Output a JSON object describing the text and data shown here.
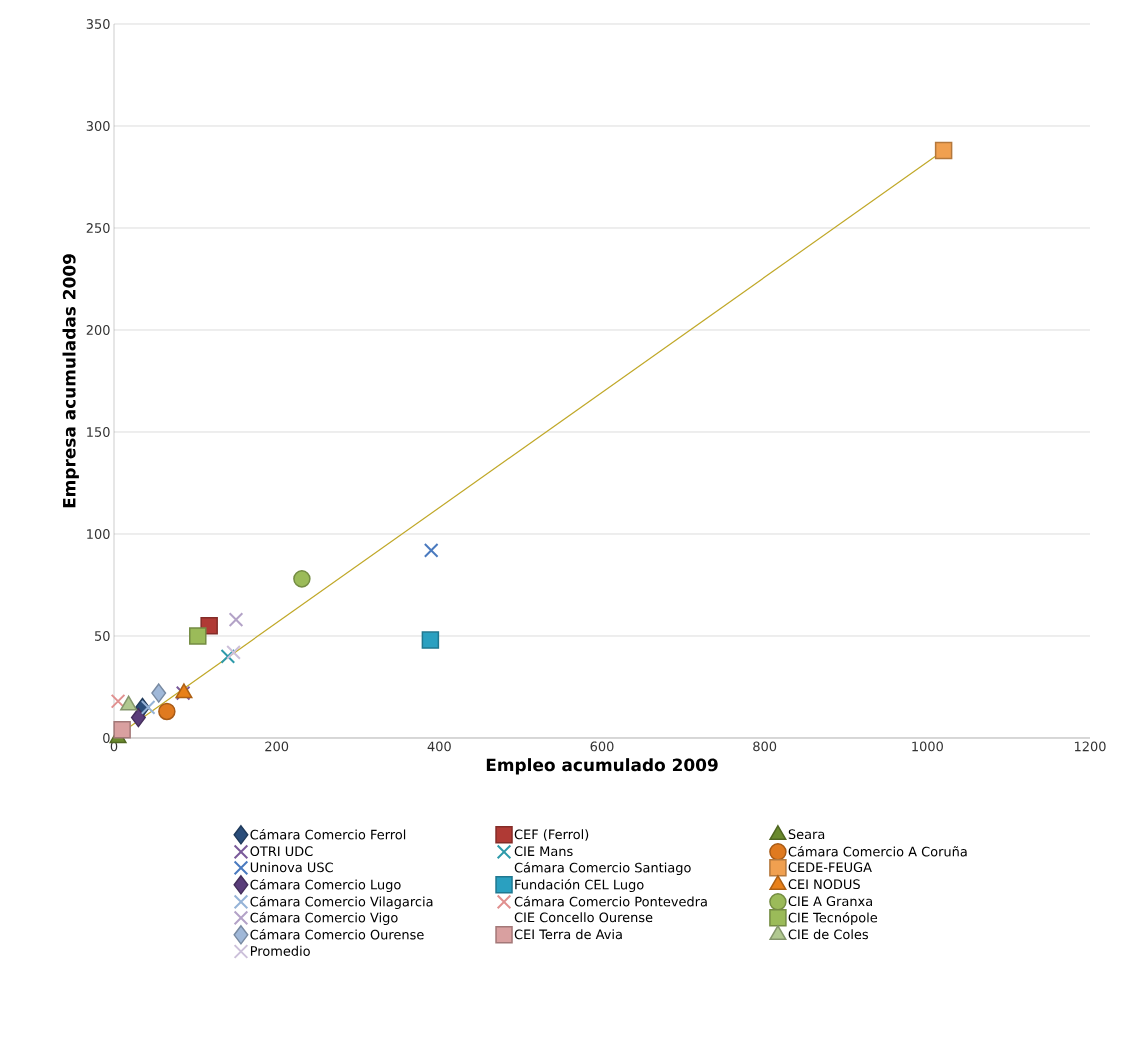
{
  "chart_data": {
    "type": "scatter",
    "xlabel": "Empleo acumulado 2009",
    "ylabel": "Empresa acumuladas 2009",
    "xlim": [
      0,
      1200
    ],
    "xticks": [
      0,
      200,
      400,
      600,
      800,
      1000,
      1200
    ],
    "ylim": [
      0,
      350
    ],
    "yticks": [
      0,
      50,
      100,
      150,
      200,
      250,
      300,
      350
    ],
    "grid": "y",
    "legend": "bottom",
    "series": [
      {
        "name": "Cámara Comercio Ferrol",
        "color": "#2a4d7a",
        "marker": "diamond",
        "x": [
          35
        ],
        "values": [
          15
        ]
      },
      {
        "name": "CEF (Ferrol)",
        "color": "#b03a35",
        "marker": "square",
        "x": [
          117
        ],
        "values": [
          55
        ]
      },
      {
        "name": "Seara",
        "color": "#6a8a2e",
        "marker": "triangle",
        "x": [
          5
        ],
        "values": [
          0
        ]
      },
      {
        "name": "OTRI UDC",
        "color": "#7a5a9a",
        "marker": "cross",
        "x": [
          85
        ],
        "values": [
          22
        ]
      },
      {
        "name": "CIE Mans",
        "color": "#2e9aaa",
        "marker": "cross",
        "x": [
          140
        ],
        "values": [
          40
        ]
      },
      {
        "name": "Cámara Comercio A Coruña",
        "color": "#e07a1f",
        "marker": "circle",
        "x": [
          65
        ],
        "values": [
          13
        ]
      },
      {
        "name": "Uninova USC",
        "color": "#4a7abf",
        "marker": "cross",
        "x": [
          390
        ],
        "values": [
          92
        ]
      },
      {
        "name": "Cámara Comercio Santiago"
      },
      {
        "name": "CEDE-FEUGA",
        "color": "#f0a050",
        "marker": "square",
        "x": [
          1020
        ],
        "values": [
          288
        ]
      },
      {
        "name": "Cámara Comercio Lugo",
        "color": "#5a3d7a",
        "marker": "diamond",
        "x": [
          30
        ],
        "values": [
          10
        ]
      },
      {
        "name": "Fundación CEL Lugo",
        "color": "#2aa0c0",
        "marker": "square",
        "x": [
          389
        ],
        "values": [
          48
        ]
      },
      {
        "name": "CEI NODUS",
        "color": "#e8801a",
        "marker": "triangle",
        "x": [
          86
        ],
        "values": [
          22
        ]
      },
      {
        "name": "Cámara Comercio Vilagarcia",
        "color": "#95b3d7",
        "marker": "cross",
        "x": [
          42
        ],
        "values": [
          15
        ]
      },
      {
        "name": "Cámara Comercio Pontevedra",
        "color": "#e0908f",
        "marker": "cross",
        "x": [
          5
        ],
        "values": [
          18
        ]
      },
      {
        "name": "CIE A Granxa",
        "color": "#9bbb59",
        "marker": "circle",
        "x": [
          231
        ],
        "values": [
          78
        ]
      },
      {
        "name": "Cámara Comercio Vigo",
        "color": "#b3a2c7",
        "marker": "cross",
        "x": [
          150
        ],
        "values": [
          58
        ]
      },
      {
        "name": "CIE Concello Ourense"
      },
      {
        "name": "CIE Tecnópole",
        "color": "#9bbb59",
        "marker": "square",
        "x": [
          103
        ],
        "values": [
          50
        ]
      },
      {
        "name": "Cámara Comercio Ourense",
        "color": "#a0b8d8",
        "marker": "diamond",
        "x": [
          55
        ],
        "values": [
          22
        ]
      },
      {
        "name": "CEI Terra de Avia",
        "color": "#d9a0a0",
        "marker": "square",
        "x": [
          10
        ],
        "values": [
          4
        ]
      },
      {
        "name": "CIE de Coles",
        "color": "#b0c890",
        "marker": "triangle",
        "x": [
          18
        ],
        "values": [
          16
        ]
      },
      {
        "name": "Promedio",
        "color": "#ccc0da",
        "marker": "cross",
        "x": [
          147
        ],
        "values": [
          42
        ]
      },
      {
        "type": "line",
        "color": "#c0a828",
        "marker": "none",
        "x": [
          0,
          1020
        ],
        "values": [
          0,
          288
        ]
      }
    ]
  }
}
